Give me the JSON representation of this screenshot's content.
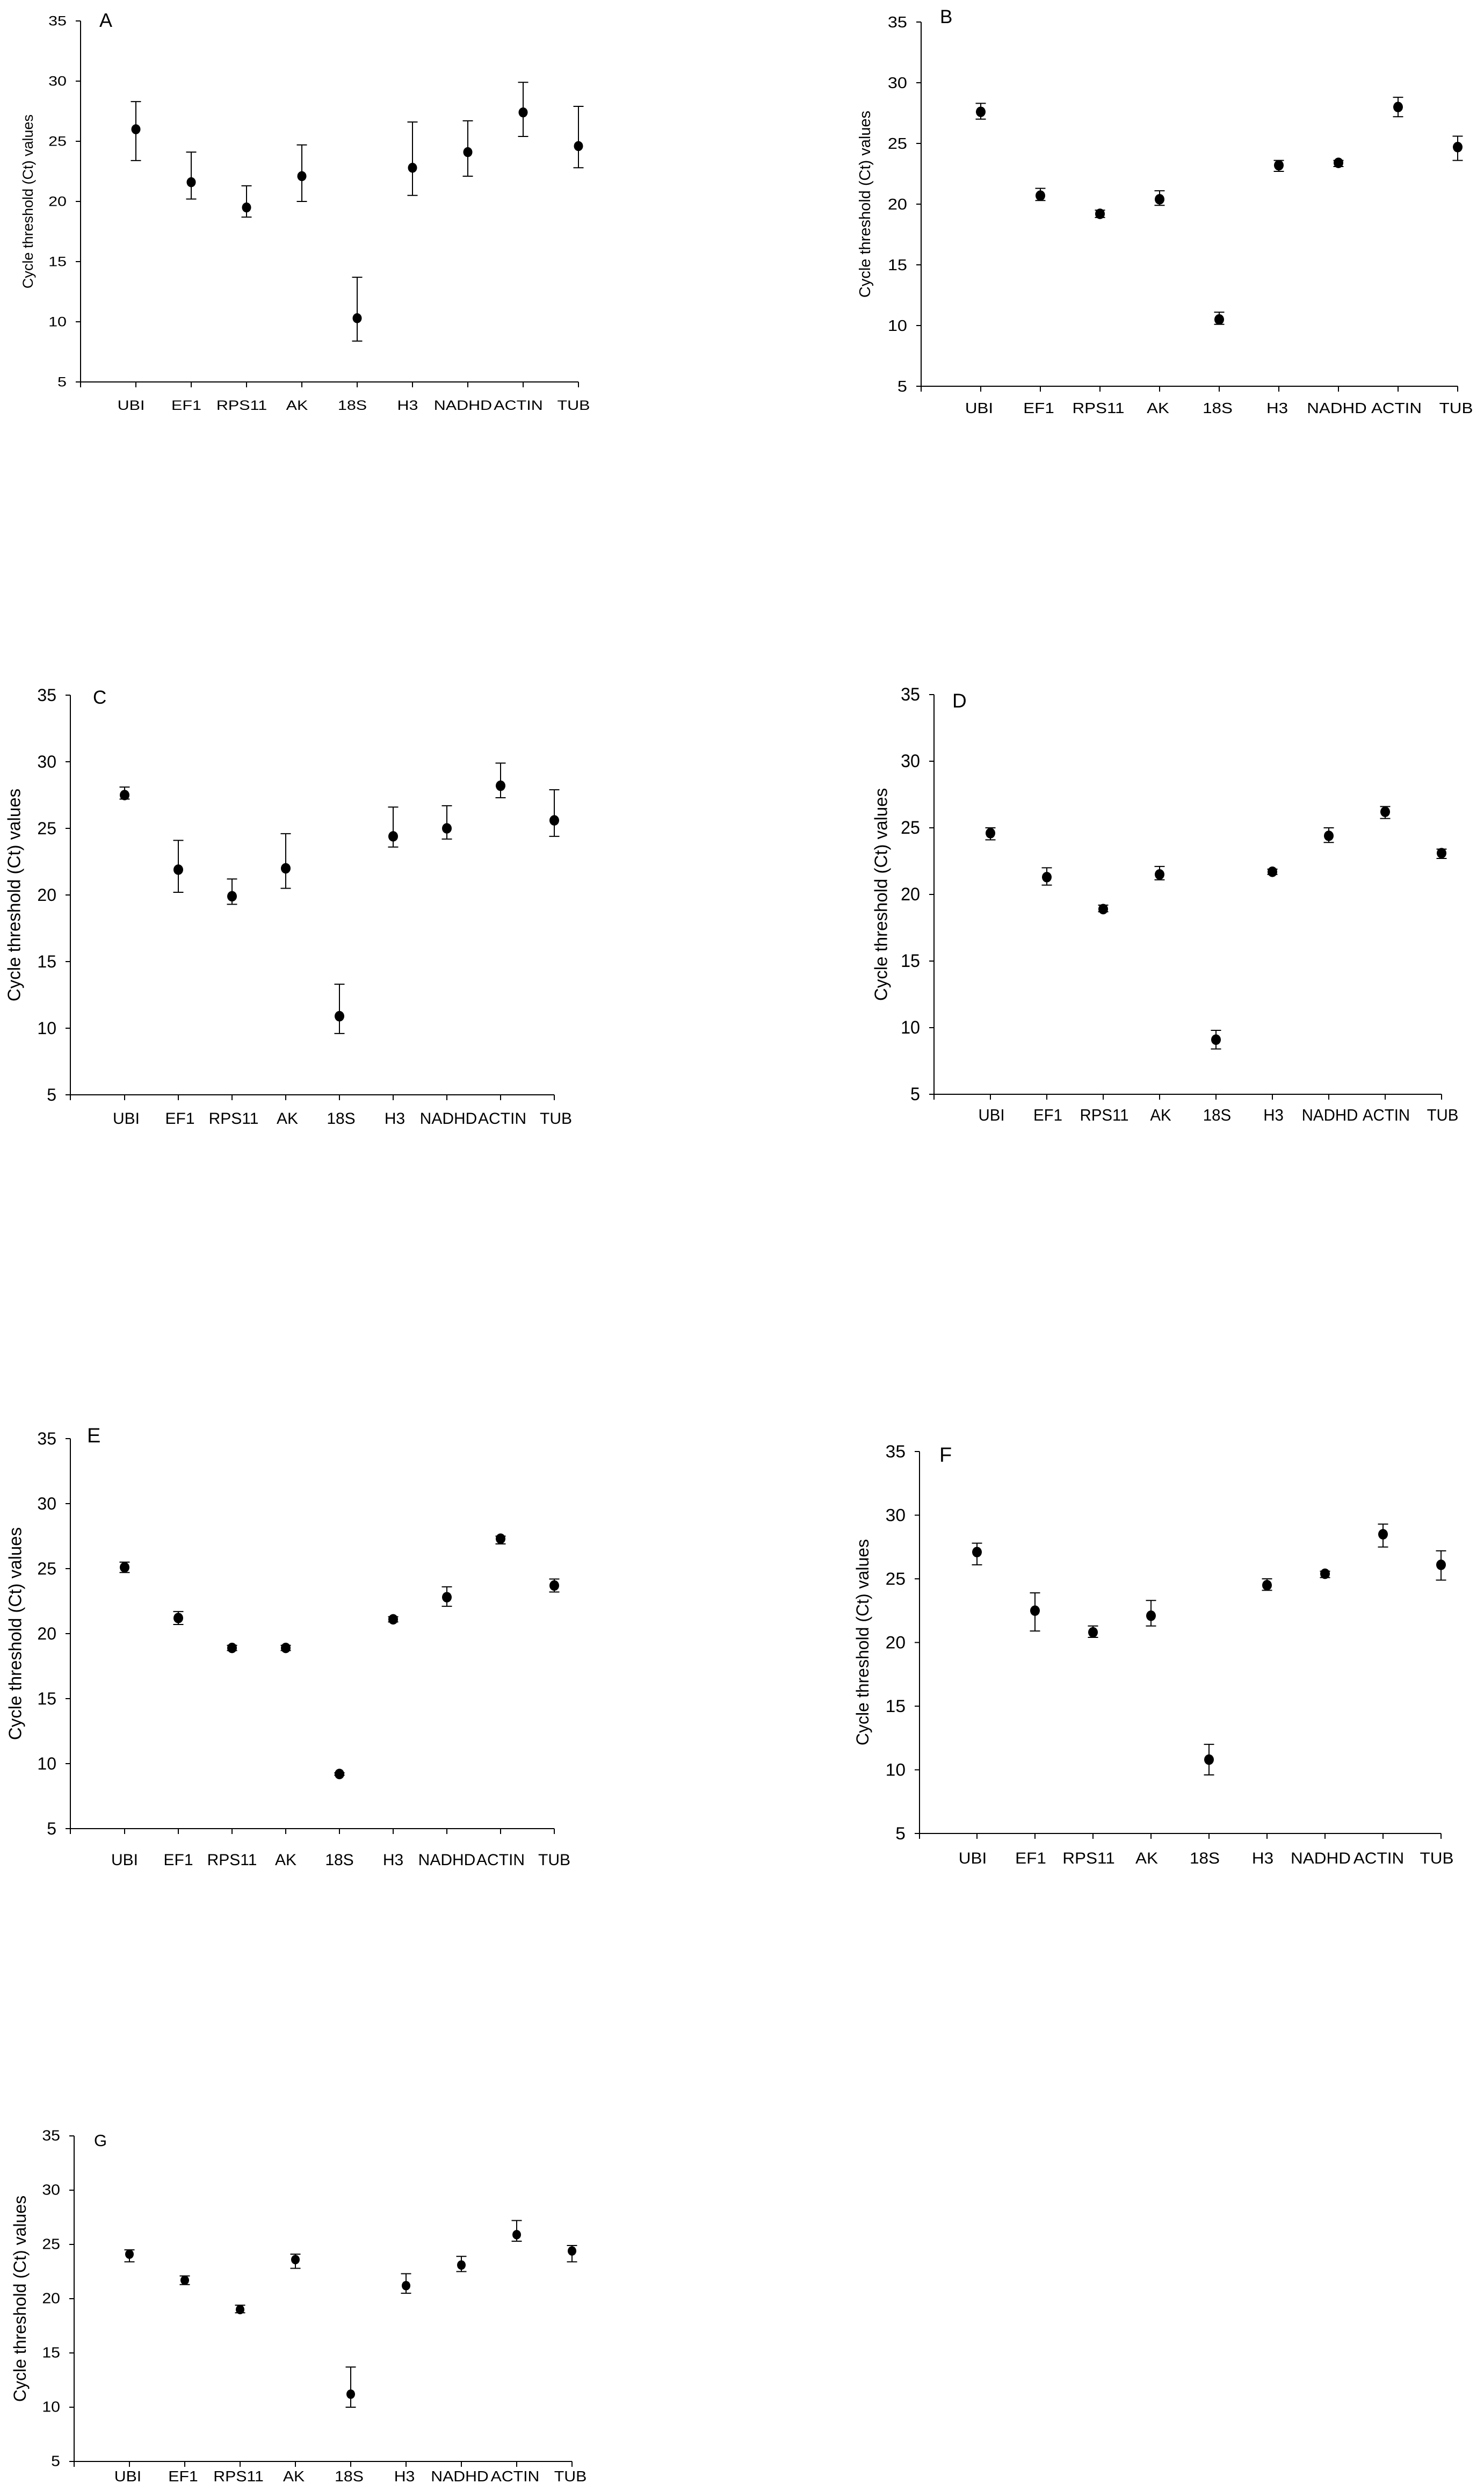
{
  "chart_data": [
    {
      "title": "A",
      "type": "scatter",
      "xlabel": "",
      "ylabel": "Cycle threshold (Ct) values",
      "ylim": [
        5,
        35
      ],
      "yticks": [
        5,
        10,
        15,
        20,
        25,
        30,
        35
      ],
      "grid": false,
      "categories": [
        "UBI",
        "EF1",
        "RPS11",
        "AK",
        "18S",
        "H3",
        "NADHD",
        "ACTIN",
        "TUB"
      ],
      "values": [
        26.0,
        21.6,
        19.5,
        22.1,
        10.3,
        22.8,
        24.1,
        27.4,
        24.6
      ],
      "err_upper": [
        28.3,
        24.1,
        21.3,
        24.7,
        13.7,
        26.6,
        26.7,
        29.9,
        27.9
      ],
      "err_lower": [
        23.4,
        20.2,
        18.7,
        20.0,
        8.4,
        20.5,
        22.1,
        25.4,
        22.8
      ]
    },
    {
      "title": "B",
      "type": "scatter",
      "xlabel": "",
      "ylabel": "Cycle threshold (Ct) values",
      "ylim": [
        5,
        35
      ],
      "yticks": [
        5,
        10,
        15,
        20,
        25,
        30,
        35
      ],
      "grid": false,
      "categories": [
        "UBI",
        "EF1",
        "RPS11",
        "AK",
        "18S",
        "H3",
        "NADHD",
        "ACTIN",
        "TUB"
      ],
      "values": [
        27.6,
        20.7,
        19.2,
        20.4,
        10.5,
        23.2,
        23.4,
        28.0,
        24.7
      ],
      "err_upper": [
        28.3,
        21.3,
        19.5,
        21.1,
        11.1,
        23.6,
        23.6,
        28.8,
        25.6
      ],
      "err_lower": [
        27.0,
        20.3,
        18.9,
        19.9,
        10.1,
        22.7,
        23.1,
        27.2,
        23.6
      ]
    },
    {
      "title": "C",
      "type": "scatter",
      "xlabel": "",
      "ylabel": "Cycle threshold (Ct) values",
      "ylim": [
        5,
        35
      ],
      "yticks": [
        5,
        10,
        15,
        20,
        25,
        30,
        35
      ],
      "grid": false,
      "categories": [
        "UBI",
        "EF1",
        "RPS11",
        "AK",
        "18S",
        "H3",
        "NADHD",
        "ACTIN",
        "TUB"
      ],
      "values": [
        27.5,
        21.9,
        19.9,
        22.0,
        10.9,
        24.4,
        25.0,
        28.2,
        25.6
      ],
      "err_upper": [
        28.1,
        24.1,
        21.2,
        24.6,
        13.3,
        26.6,
        26.7,
        29.9,
        27.9
      ],
      "err_lower": [
        27.2,
        20.2,
        19.3,
        20.5,
        9.6,
        23.6,
        24.2,
        27.3,
        24.4
      ]
    },
    {
      "title": "D",
      "type": "scatter",
      "xlabel": "",
      "ylabel": "Cycle threshold (Ct) values",
      "ylim": [
        5,
        35
      ],
      "yticks": [
        5,
        10,
        15,
        20,
        25,
        30,
        35
      ],
      "grid": false,
      "categories": [
        "UBI",
        "EF1",
        "RPS11",
        "AK",
        "18S",
        "H3",
        "NADHD",
        "ACTIN",
        "TUB"
      ],
      "values": [
        24.6,
        21.3,
        18.9,
        21.5,
        9.1,
        21.7,
        24.4,
        26.2,
        23.1
      ],
      "err_upper": [
        25.0,
        22.0,
        19.2,
        22.1,
        9.8,
        21.9,
        25.0,
        26.6,
        23.4
      ],
      "err_lower": [
        24.1,
        20.7,
        18.7,
        21.1,
        8.4,
        21.5,
        23.9,
        25.7,
        22.7
      ]
    },
    {
      "title": "E",
      "type": "scatter",
      "xlabel": "",
      "ylabel": "Cycle threshold (Ct) values",
      "ylim": [
        5,
        35
      ],
      "yticks": [
        5,
        10,
        15,
        20,
        25,
        30,
        35
      ],
      "grid": false,
      "categories": [
        "UBI",
        "EF1",
        "RPS11",
        "AK",
        "18S",
        "H3",
        "NADHD",
        "ACTIN",
        "TUB"
      ],
      "values": [
        25.1,
        21.2,
        18.9,
        18.9,
        9.2,
        21.1,
        22.8,
        27.3,
        23.7
      ],
      "err_upper": [
        25.5,
        21.7,
        19.1,
        19.1,
        9.3,
        21.3,
        23.6,
        27.5,
        24.2
      ],
      "err_lower": [
        24.7,
        20.7,
        18.7,
        18.7,
        9.1,
        20.9,
        22.1,
        26.9,
        23.2
      ]
    },
    {
      "title": "F",
      "type": "scatter",
      "xlabel": "",
      "ylabel": "Cycle threshold (Ct) values",
      "ylim": [
        5,
        35
      ],
      "yticks": [
        5,
        10,
        15,
        20,
        25,
        30,
        35
      ],
      "grid": false,
      "categories": [
        "UBI",
        "EF1",
        "RPS11",
        "AK",
        "18S",
        "H3",
        "NADHD",
        "ACTIN",
        "TUB"
      ],
      "values": [
        27.1,
        22.5,
        20.8,
        22.1,
        10.8,
        24.5,
        25.4,
        28.5,
        26.1
      ],
      "err_upper": [
        27.8,
        23.9,
        21.3,
        23.3,
        12.0,
        25.0,
        25.6,
        29.3,
        27.2
      ],
      "err_lower": [
        26.1,
        20.9,
        20.4,
        21.3,
        9.6,
        24.1,
        25.1,
        27.5,
        24.9
      ]
    },
    {
      "title": "G",
      "type": "scatter",
      "xlabel": "",
      "ylabel": "Cycle threshold (Ct) values",
      "ylim": [
        5,
        35
      ],
      "yticks": [
        5,
        10,
        15,
        20,
        25,
        30,
        35
      ],
      "grid": false,
      "categories": [
        "UBI",
        "EF1",
        "RPS11",
        "AK",
        "18S",
        "H3",
        "NADHD",
        "ACTIN",
        "TUB"
      ],
      "values": [
        24.1,
        21.7,
        19.0,
        23.6,
        11.2,
        21.2,
        23.1,
        25.9,
        24.4
      ],
      "err_upper": [
        24.5,
        22.1,
        19.4,
        24.1,
        13.7,
        22.3,
        23.9,
        27.2,
        24.9
      ],
      "err_lower": [
        23.4,
        21.3,
        18.7,
        22.8,
        10.0,
        20.5,
        22.5,
        25.3,
        23.4
      ]
    }
  ]
}
